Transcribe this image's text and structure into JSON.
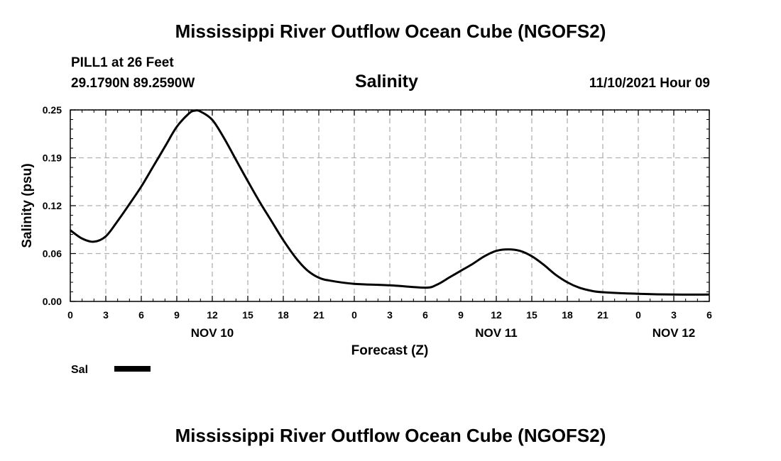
{
  "header": {
    "title": "Mississippi River Outflow Ocean Cube (NGOFS2)",
    "station": "PILL1 at 26 Feet",
    "coordinates": "29.1790N  89.2590W",
    "date": "11/10/2021 Hour 09"
  },
  "footer": {
    "title": "Mississippi River Outflow Ocean Cube (NGOFS2)"
  },
  "chart_data": {
    "type": "line",
    "title": "Salinity",
    "xlabel": "Forecast (Z)",
    "ylabel": "Salinity (psu)",
    "ylim": [
      0,
      0.25
    ],
    "xlim": [
      0,
      54
    ],
    "x_unit": "hours from 0Z Nov 10",
    "grid": true,
    "yticks": [
      {
        "value": 0,
        "label": "0.00"
      },
      {
        "value": 0.0625,
        "label": "0.06"
      },
      {
        "value": 0.125,
        "label": "0.12"
      },
      {
        "value": 0.1875,
        "label": "0.19"
      },
      {
        "value": 0.25,
        "label": "0.25"
      }
    ],
    "xticks": [
      {
        "value": 0,
        "label": "0"
      },
      {
        "value": 3,
        "label": "3"
      },
      {
        "value": 6,
        "label": "6"
      },
      {
        "value": 9,
        "label": "9"
      },
      {
        "value": 12,
        "label": "12"
      },
      {
        "value": 15,
        "label": "15"
      },
      {
        "value": 18,
        "label": "18"
      },
      {
        "value": 21,
        "label": "21"
      },
      {
        "value": 24,
        "label": "0"
      },
      {
        "value": 27,
        "label": "3"
      },
      {
        "value": 30,
        "label": "6"
      },
      {
        "value": 33,
        "label": "9"
      },
      {
        "value": 36,
        "label": "12"
      },
      {
        "value": 39,
        "label": "15"
      },
      {
        "value": 42,
        "label": "18"
      },
      {
        "value": 45,
        "label": "21"
      },
      {
        "value": 48,
        "label": "0"
      },
      {
        "value": 51,
        "label": "3"
      },
      {
        "value": 54,
        "label": "6"
      }
    ],
    "day_labels": [
      {
        "value": 12,
        "label": "NOV 10"
      },
      {
        "value": 36,
        "label": "NOV 11"
      },
      {
        "value": 51,
        "label": "NOV 12"
      }
    ],
    "series": [
      {
        "name": "Sal",
        "color": "#000000",
        "x": [
          0,
          1,
          2,
          3,
          4,
          5,
          6,
          7,
          8,
          9,
          10,
          10.5,
          11,
          12,
          13,
          14,
          15,
          16,
          17,
          18,
          19,
          20,
          21,
          22,
          24,
          27,
          30,
          31,
          32,
          33,
          34,
          35,
          36,
          37,
          38,
          39,
          40,
          41,
          42,
          43,
          44,
          45,
          48,
          51,
          54
        ],
        "values": [
          0.093,
          0.082,
          0.078,
          0.085,
          0.105,
          0.127,
          0.15,
          0.176,
          0.202,
          0.228,
          0.245,
          0.249,
          0.248,
          0.237,
          0.213,
          0.185,
          0.157,
          0.13,
          0.105,
          0.08,
          0.058,
          0.041,
          0.031,
          0.027,
          0.023,
          0.021,
          0.018,
          0.022,
          0.031,
          0.04,
          0.049,
          0.059,
          0.066,
          0.068,
          0.066,
          0.059,
          0.048,
          0.035,
          0.025,
          0.018,
          0.014,
          0.012,
          0.01,
          0.009,
          0.009
        ]
      }
    ],
    "legend": {
      "position": "bottom-left",
      "label": "Sal"
    }
  }
}
